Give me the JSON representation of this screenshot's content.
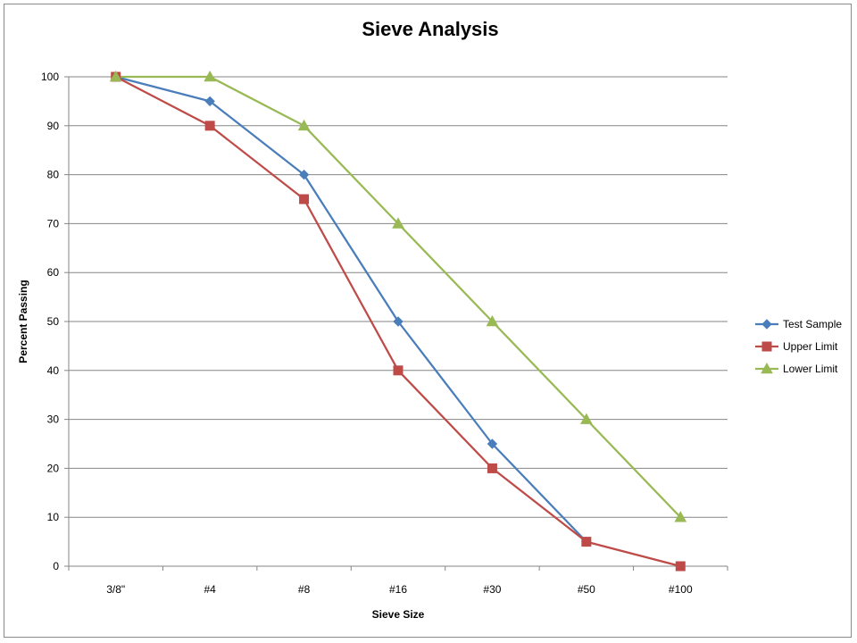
{
  "chart_data": {
    "type": "line",
    "title": "Sieve Analysis",
    "xlabel": "Sieve Size",
    "ylabel": "Percent Passing",
    "categories": [
      "3/8\"",
      "#4",
      "#8",
      "#16",
      "#30",
      "#50",
      "#100"
    ],
    "ylim": [
      0,
      100
    ],
    "yticks": [
      0,
      10,
      20,
      30,
      40,
      50,
      60,
      70,
      80,
      90,
      100
    ],
    "grid": "horizontal",
    "legend_position": "right",
    "series": [
      {
        "name": "Test Sample",
        "values": [
          100,
          95,
          80,
          50,
          25,
          5,
          null
        ],
        "color": "#4a7ebb",
        "marker": "diamond"
      },
      {
        "name": "Upper Limit",
        "values": [
          100,
          90,
          75,
          40,
          20,
          5,
          0
        ],
        "color": "#be4b48",
        "marker": "square"
      },
      {
        "name": "Lower Limit",
        "values": [
          100,
          100,
          90,
          70,
          50,
          30,
          10
        ],
        "color": "#98b954",
        "marker": "triangle"
      }
    ]
  }
}
